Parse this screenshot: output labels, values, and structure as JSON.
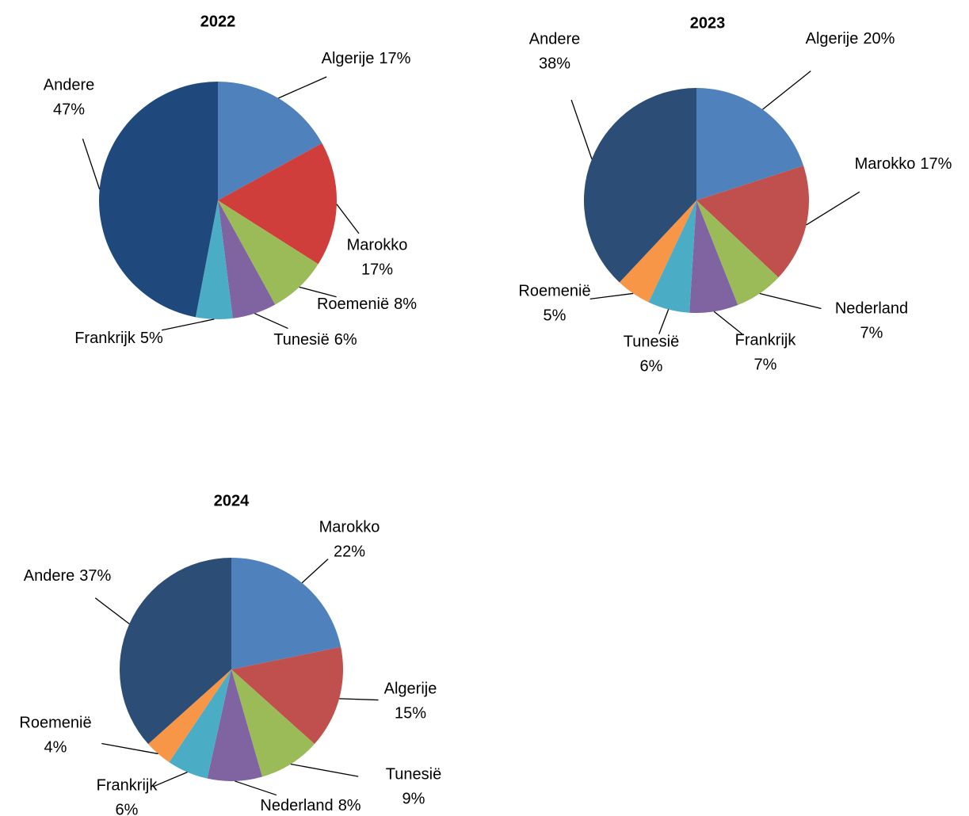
{
  "chart_data": [
    {
      "type": "pie",
      "title": "2022",
      "categories": [
        "Algerije",
        "Marokko",
        "Roemenië",
        "Tunesië",
        "Frankrijk",
        "Andere"
      ],
      "values": [
        17,
        17,
        8,
        6,
        5,
        47
      ],
      "value_labels": [
        "17%",
        "17%",
        "8%",
        "6%",
        "5%",
        "47%"
      ],
      "colors": [
        "#4f81bd",
        "#cf3e3b",
        "#9bbb59",
        "#8064a2",
        "#4bacc6",
        "#1f497d"
      ]
    },
    {
      "type": "pie",
      "title": "2023",
      "categories": [
        "Algerije",
        "Marokko",
        "Nederland",
        "Frankrijk",
        "Tunesië",
        "Roemenië",
        "Andere"
      ],
      "values": [
        20,
        17,
        7,
        7,
        6,
        5,
        38
      ],
      "value_labels": [
        "20%",
        "17%",
        "7%",
        "7%",
        "6%",
        "5%",
        "38%"
      ],
      "colors": [
        "#4f81bd",
        "#c0504d",
        "#9bbb59",
        "#8064a2",
        "#4bacc6",
        "#f79646",
        "#2c4d75"
      ]
    },
    {
      "type": "pie",
      "title": "2024",
      "categories": [
        "Marokko",
        "Algerije",
        "Tunesië",
        "Nederland",
        "Frankrijk",
        "Roemenië",
        "Andere"
      ],
      "values": [
        22,
        15,
        9,
        8,
        6,
        4,
        37
      ],
      "value_labels": [
        "22%",
        "15%",
        "9%",
        "8%",
        "6%",
        "4%",
        "37%"
      ],
      "colors": [
        "#4f81bd",
        "#c0504d",
        "#9bbb59",
        "#8064a2",
        "#4bacc6",
        "#f79646",
        "#2c4d75"
      ]
    }
  ]
}
